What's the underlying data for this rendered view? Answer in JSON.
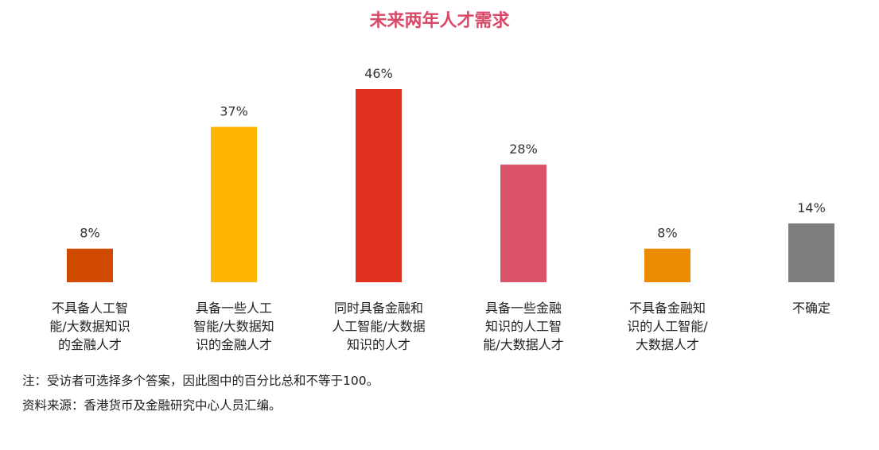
{
  "chart_data": {
    "type": "bar",
    "title": "未来两年人才需求",
    "categories": [
      [
        "不具备人工智",
        "能/大数据知识",
        "的金融人才"
      ],
      [
        "具备一些人工",
        "智能/大数据知",
        "识的金融人才"
      ],
      [
        "同时具备金融和",
        "人工智能/大数据",
        "知识的人才"
      ],
      [
        "具备一些金融",
        "知识的人工智",
        "能/大数据人才"
      ],
      [
        "不具备金融知",
        "识的人工智能/",
        "大数据人才"
      ],
      [
        "不确定"
      ]
    ],
    "values": [
      8,
      37,
      46,
      28,
      8,
      14
    ],
    "value_labels": [
      "8%",
      "37%",
      "46%",
      "28%",
      "8%",
      "14%"
    ],
    "colors": [
      "#d04a02",
      "#ffb600",
      "#e0301e",
      "#db536a",
      "#eb8c00",
      "#7d7d7d"
    ],
    "ylim": [
      0,
      46
    ],
    "grid": false,
    "xlabel": "",
    "ylabel": ""
  },
  "notes": {
    "note": "注：受访者可选择多个答案，因此图中的百分比总和不等于100。",
    "source": "资料来源：香港货币及金融研究中心人员汇编。"
  }
}
